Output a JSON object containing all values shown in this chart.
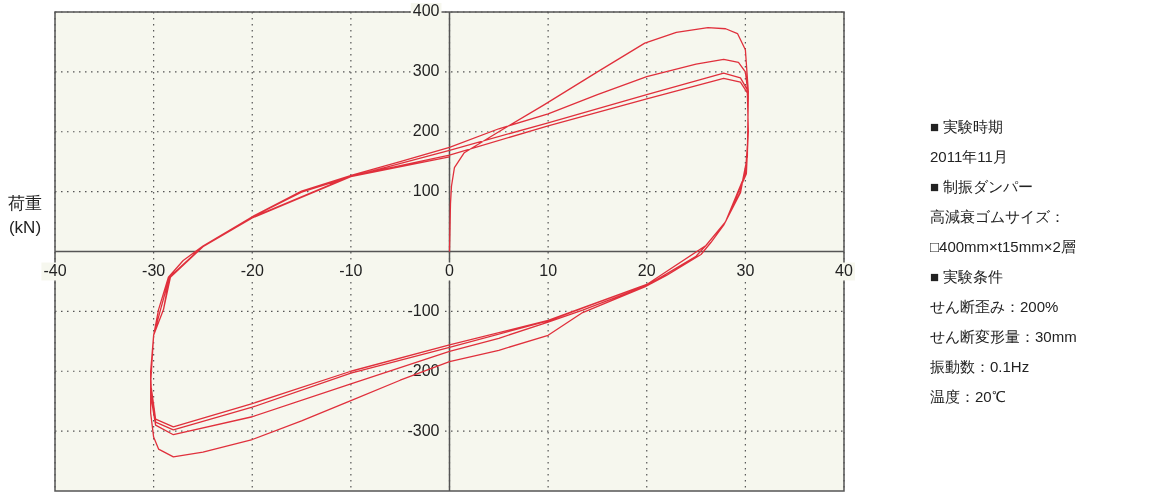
{
  "chart_data": {
    "type": "line",
    "ylabel": "荷重 (kN)",
    "xlim": [
      -40,
      40
    ],
    "ylim": [
      -400,
      400
    ],
    "xticks": [
      -40,
      -30,
      -20,
      -10,
      0,
      10,
      20,
      30,
      40
    ],
    "yticks": [
      -300,
      -200,
      -100,
      100,
      200,
      300,
      400
    ],
    "grid": true,
    "series": [
      {
        "color": "#e0303c",
        "x": [
          0,
          0.1,
          0.2,
          0.5,
          1.5,
          5,
          9.5,
          15,
          19.8,
          23,
          26.2,
          28,
          29.2,
          30,
          30.3,
          30.2,
          29.5,
          27.8,
          26.5,
          25.5,
          22,
          19.8,
          16,
          13.5,
          10,
          5,
          0,
          -5,
          -10,
          -15,
          -20,
          -25,
          -28,
          -29.5,
          -30,
          -30.3,
          -30.3,
          -30,
          -29.5,
          -28.5,
          -27,
          -25,
          -22,
          -19.8,
          -15,
          -9.8,
          -5,
          0,
          5,
          10,
          15,
          20,
          25,
          27.8,
          29.3,
          30,
          30.3,
          30.2,
          29.5,
          28,
          26,
          25,
          20,
          13.5,
          10,
          5,
          0,
          -10,
          -20,
          -28,
          -29.8,
          -30.2,
          -30.3,
          -30,
          -29.3,
          -28.4,
          -25,
          -20,
          -15,
          -10,
          0,
          10,
          20,
          27.8,
          29.5,
          30.2,
          30.3,
          30,
          28,
          26,
          20,
          10,
          0,
          -10,
          -20,
          -28,
          -29.8,
          -30.3,
          -30,
          -29,
          -28.4,
          -25,
          -20,
          -10,
          0,
          10,
          20,
          27.8,
          29.5,
          30.2,
          30.3,
          30.1,
          28,
          26,
          20,
          10,
          0,
          -10,
          -20,
          -28,
          -29.8,
          -30.3,
          -30,
          -29,
          -28.3,
          -25,
          -20,
          -10,
          0
        ],
        "values": [
          0,
          80,
          109,
          140,
          165,
          200,
          244,
          300,
          348,
          366,
          374,
          372,
          364,
          337,
          267,
          158,
          98,
          44,
          15,
          -5,
          -40,
          -59,
          -85,
          -102,
          -140,
          -165,
          -184,
          -215,
          -249,
          -283,
          -314,
          -335,
          -343,
          -330,
          -310,
          -270,
          -200,
          -140,
          -97,
          -43,
          -15,
          9,
          38,
          60,
          101,
          128,
          150,
          174,
          205,
          230,
          262,
          292,
          313,
          321,
          316,
          300,
          260,
          158,
          100,
          50,
          10,
          -8,
          -57,
          -98,
          -118,
          -145,
          -167,
          -221,
          -276,
          -306,
          -290,
          -250,
          -200,
          -140,
          -97,
          -43,
          9,
          58,
          99,
          125,
          169,
          215,
          262,
          298,
          290,
          270,
          200,
          130,
          50,
          10,
          -55,
          -116,
          -160,
          -203,
          -260,
          -298,
          -285,
          -220,
          -140,
          -97,
          -43,
          9,
          57,
          126,
          161,
          210,
          255,
          289,
          283,
          265,
          200,
          130,
          50,
          10,
          -55,
          -115,
          -156,
          -200,
          -254,
          -293,
          -280,
          -220,
          -140,
          -97,
          -43,
          8,
          56,
          125,
          158
        ]
      }
    ],
    "annotations": [
      "■ 実験時期",
      "2011年11月",
      "■ 制振ダンパー",
      "高減衰ゴムサイズ：",
      "□400mm×t15mm×2層",
      "■ 実験条件",
      "せん断歪み：200%",
      "せん断変形量：30mm",
      "振動数：0.1Hz",
      "温度：20℃"
    ]
  }
}
